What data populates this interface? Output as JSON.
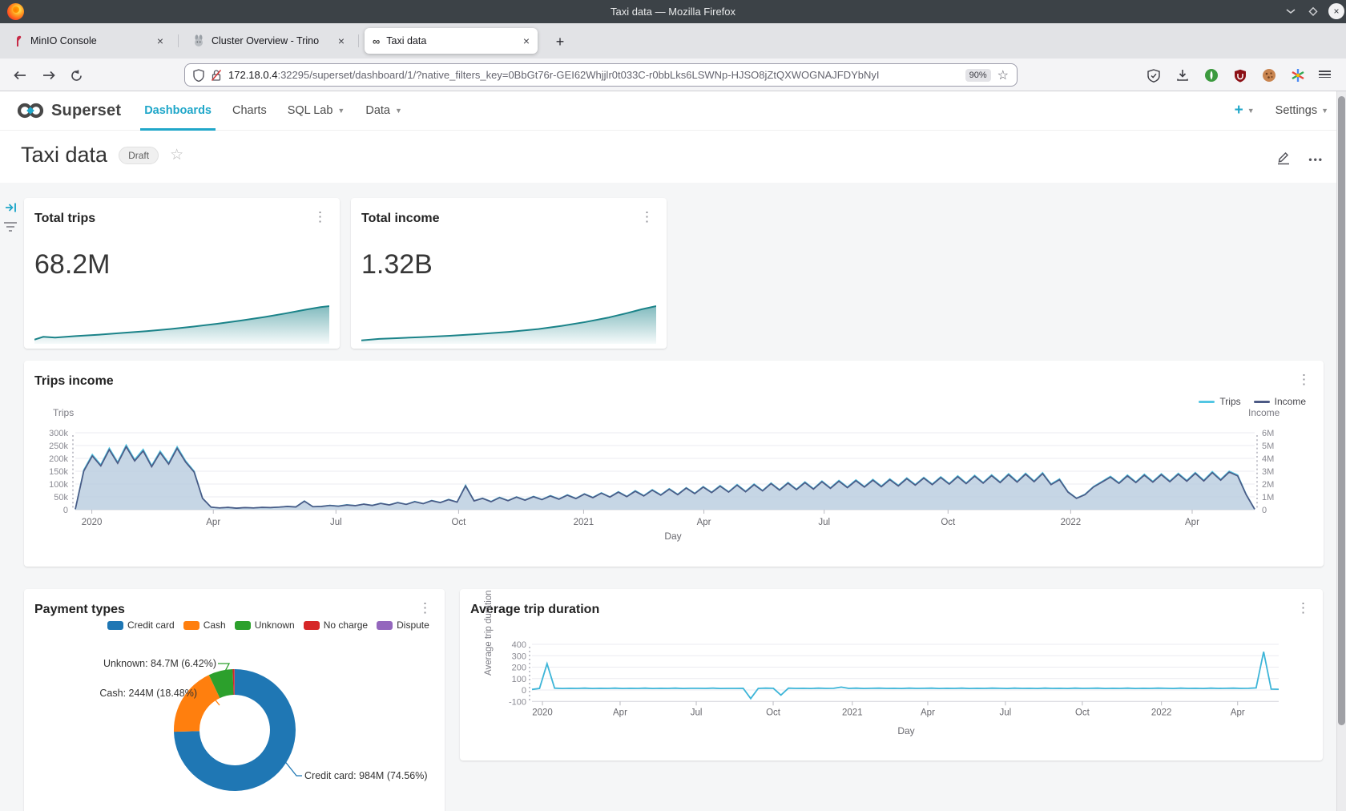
{
  "window": {
    "title": "Taxi data — Mozilla Firefox"
  },
  "browser": {
    "tabs": [
      {
        "label": "MinIO Console"
      },
      {
        "label": "Cluster Overview - Trino"
      },
      {
        "label": "Taxi data"
      }
    ],
    "new_tab_label": "+",
    "url": {
      "domain": "172.18.0.4",
      "rest": ":32295/superset/dashboard/1/?native_filters_key=0BbGt76r-GEI62Whjjlr0t033C-r0bbLks6LSWNp-HJSO8jZtQXWOGNAJFDYbNyI",
      "zoom_badge": "90%"
    }
  },
  "nav": {
    "brand": "Superset",
    "items": [
      {
        "label": "Dashboards",
        "active": true,
        "caret": false
      },
      {
        "label": "Charts",
        "active": false,
        "caret": false
      },
      {
        "label": "SQL Lab",
        "active": false,
        "caret": true
      },
      {
        "label": "Data",
        "active": false,
        "caret": true
      }
    ],
    "plus_label": "+",
    "settings_label": "Settings"
  },
  "header": {
    "title": "Taxi data",
    "badge": "Draft"
  },
  "cards": {
    "total_trips": {
      "title": "Total trips",
      "value": "68.2M"
    },
    "total_income": {
      "title": "Total income",
      "value": "1.32B"
    },
    "trips_income": {
      "title": "Trips income",
      "y_left_title": "Trips",
      "y_right_title": "Income",
      "x_title": "Day"
    },
    "payment_types": {
      "title": "Payment types"
    },
    "avg_duration": {
      "title": "Average trip duration",
      "y_title": "Average trip duration (minute",
      "x_title": "Day"
    }
  },
  "chart_data": {
    "total_trips_spark": {
      "type": "area",
      "color": "#1b8389",
      "points": [
        [
          0,
          0.05
        ],
        [
          0.03,
          0.13
        ],
        [
          0.07,
          0.11
        ],
        [
          0.14,
          0.15
        ],
        [
          0.22,
          0.19
        ],
        [
          0.3,
          0.24
        ],
        [
          0.38,
          0.29
        ],
        [
          0.46,
          0.35
        ],
        [
          0.54,
          0.42
        ],
        [
          0.62,
          0.5
        ],
        [
          0.7,
          0.59
        ],
        [
          0.78,
          0.69
        ],
        [
          0.85,
          0.79
        ],
        [
          0.92,
          0.9
        ],
        [
          0.97,
          0.97
        ],
        [
          1,
          1
        ]
      ]
    },
    "total_income_spark": {
      "type": "area",
      "color": "#1b8389",
      "points": [
        [
          0,
          0.03
        ],
        [
          0.06,
          0.07
        ],
        [
          0.12,
          0.09
        ],
        [
          0.2,
          0.12
        ],
        [
          0.3,
          0.16
        ],
        [
          0.4,
          0.21
        ],
        [
          0.5,
          0.27
        ],
        [
          0.6,
          0.35
        ],
        [
          0.68,
          0.44
        ],
        [
          0.76,
          0.55
        ],
        [
          0.84,
          0.68
        ],
        [
          0.9,
          0.8
        ],
        [
          0.95,
          0.91
        ],
        [
          1,
          1
        ]
      ]
    },
    "trips_income": {
      "type": "line",
      "title": "Trips income",
      "x_title": "Day",
      "x_ticks": {
        "labels": [
          "2020",
          "Apr",
          "Jul",
          "Oct",
          "2021",
          "Apr",
          "Jul",
          "Oct",
          "2022",
          "Apr"
        ],
        "t": [
          0.014,
          0.117,
          0.221,
          0.325,
          0.431,
          0.533,
          0.635,
          0.74,
          0.844,
          0.947
        ]
      },
      "y_left": {
        "title": "Trips",
        "labels": [
          "300k",
          "250k",
          "200k",
          "150k",
          "100k",
          "50k",
          "0"
        ],
        "max": 300
      },
      "y_right": {
        "title": "Income",
        "labels": [
          "6M",
          "5M",
          "4M",
          "3M",
          "2M",
          "1M",
          "0"
        ],
        "max": 6
      },
      "area_fill": "#bccfe0",
      "series": [
        {
          "name": "Trips",
          "color": "#52c6e3",
          "unit": "thousands",
          "values": [
            2,
            155,
            215,
            175,
            240,
            185,
            252,
            195,
            235,
            172,
            228,
            182,
            245,
            190,
            150,
            45,
            10,
            7,
            9,
            6,
            8,
            7,
            9,
            8,
            10,
            13,
            11,
            34,
            12,
            13,
            17,
            14,
            19,
            16,
            22,
            17,
            25,
            19,
            28,
            21,
            32,
            24,
            36,
            28,
            40,
            30,
            95,
            35,
            45,
            32,
            48,
            36,
            50,
            38,
            52,
            40,
            55,
            42,
            58,
            44,
            62,
            48,
            66,
            50,
            70,
            52,
            74,
            55,
            78,
            58,
            82,
            60,
            86,
            64,
            90,
            68,
            94,
            70,
            98,
            72,
            100,
            75,
            104,
            78,
            106,
            80,
            108,
            82,
            112,
            85,
            114,
            88,
            116,
            90,
            118,
            92,
            120,
            95,
            124,
            98,
            126,
            100,
            128,
            102,
            132,
            104,
            134,
            106,
            136,
            108,
            140,
            110,
            142,
            112,
            144,
            100,
            120,
            70,
            45,
            60,
            90,
            110,
            130,
            105,
            135,
            108,
            138,
            110,
            140,
            112,
            142,
            114,
            145,
            115,
            148,
            118,
            150,
            135,
            60,
            2
          ]
        },
        {
          "name": "Income",
          "color": "#4c5a85",
          "unit": "millions",
          "values": [
            0.04,
            3.02,
            4.19,
            3.41,
            4.68,
            3.61,
            4.91,
            3.8,
            4.58,
            3.35,
            4.45,
            3.55,
            4.78,
            3.71,
            2.93,
            0.88,
            0.2,
            0.14,
            0.18,
            0.12,
            0.16,
            0.14,
            0.18,
            0.16,
            0.2,
            0.25,
            0.21,
            0.66,
            0.23,
            0.25,
            0.33,
            0.27,
            0.37,
            0.31,
            0.43,
            0.33,
            0.49,
            0.37,
            0.55,
            0.41,
            0.62,
            0.47,
            0.7,
            0.55,
            0.78,
            0.59,
            1.85,
            0.68,
            0.88,
            0.62,
            0.94,
            0.7,
            0.98,
            0.74,
            1.01,
            0.78,
            1.07,
            0.82,
            1.13,
            0.86,
            1.21,
            0.94,
            1.29,
            0.98,
            1.37,
            1.01,
            1.44,
            1.07,
            1.52,
            1.13,
            1.6,
            1.17,
            1.68,
            1.25,
            1.76,
            1.33,
            1.83,
            1.37,
            1.91,
            1.4,
            1.95,
            1.46,
            2.03,
            1.52,
            2.07,
            1.56,
            2.11,
            1.6,
            2.18,
            1.66,
            2.22,
            1.72,
            2.26,
            1.76,
            2.3,
            1.79,
            2.34,
            1.85,
            2.42,
            1.91,
            2.46,
            1.95,
            2.5,
            1.99,
            2.57,
            2.03,
            2.61,
            2.07,
            2.65,
            2.11,
            2.73,
            2.15,
            2.77,
            2.18,
            2.81,
            1.95,
            2.34,
            1.37,
            0.88,
            1.17,
            1.76,
            2.15,
            2.54,
            2.05,
            2.63,
            2.11,
            2.69,
            2.15,
            2.73,
            2.18,
            2.77,
            2.22,
            2.83,
            2.24,
            2.89,
            2.3,
            2.93,
            2.63,
            1.17,
            0.04
          ]
        }
      ]
    },
    "payment_types": {
      "type": "donut",
      "title": "Payment types",
      "slices": [
        {
          "label": "Credit card",
          "color": "#1f77b4",
          "pct": 74.56,
          "value": "984M"
        },
        {
          "label": "Cash",
          "color": "#ff7f0e",
          "pct": 18.48,
          "value": "244M"
        },
        {
          "label": "Unknown",
          "color": "#2ca02c",
          "pct": 6.42,
          "value": "84.7M"
        },
        {
          "label": "No charge",
          "color": "#d62728",
          "pct": 0.47
        },
        {
          "label": "Dispute",
          "color": "#9467bd",
          "pct": 0.07
        }
      ],
      "callouts": [
        "Unknown: 84.7M (6.42%)",
        "Cash: 244M (18.48%)",
        "Credit card: 984M (74.56%)"
      ]
    },
    "avg_duration": {
      "type": "line",
      "title": "Average trip duration",
      "color": "#3db5d8",
      "x_title": "Day",
      "x_ticks": {
        "labels": [
          "2020",
          "Apr",
          "Jul",
          "Oct",
          "2021",
          "Apr",
          "Jul",
          "Oct",
          "2022",
          "Apr"
        ],
        "t": [
          0.014,
          0.118,
          0.22,
          0.323,
          0.429,
          0.53,
          0.634,
          0.737,
          0.843,
          0.945
        ]
      },
      "y_ticks": {
        "labels": [
          "400",
          "300",
          "200",
          "100",
          "0",
          "-100"
        ],
        "values": [
          400,
          300,
          200,
          100,
          0,
          -100
        ]
      },
      "values": [
        5,
        14,
        230,
        16,
        13,
        15,
        14,
        16,
        13,
        15,
        14,
        16,
        13,
        15,
        14,
        16,
        13,
        15,
        14,
        16,
        13,
        15,
        15,
        14,
        16,
        13,
        14,
        14,
        15,
        -75,
        14,
        16,
        15,
        -45,
        16,
        14,
        15,
        13,
        16,
        14,
        15,
        25,
        14,
        16,
        13,
        15,
        16,
        14,
        15,
        13,
        16,
        14,
        15,
        16,
        13,
        15,
        14,
        16,
        13,
        15,
        14,
        16,
        15,
        13,
        16,
        14,
        15,
        13,
        16,
        14,
        15,
        13,
        16,
        14,
        15,
        16,
        13,
        15,
        14,
        16,
        13,
        15,
        14,
        16,
        15,
        13,
        16,
        14,
        15,
        13,
        16,
        14,
        15,
        16,
        14,
        15,
        18,
        335,
        8,
        6
      ]
    }
  }
}
